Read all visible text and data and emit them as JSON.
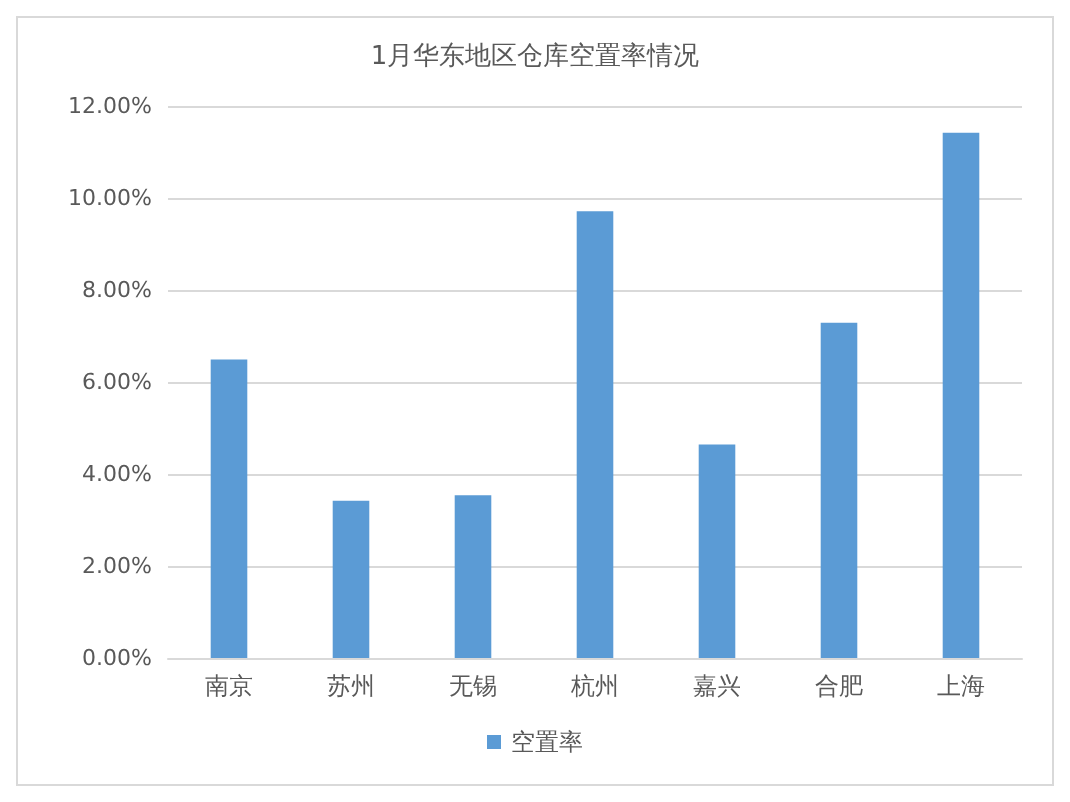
{
  "chart_data": {
    "type": "bar",
    "title": "1月华东地区仓库空置率情况",
    "categories": [
      "南京",
      "苏州",
      "无锡",
      "杭州",
      "嘉兴",
      "合肥",
      "上海"
    ],
    "series": [
      {
        "name": "空置率",
        "color": "#5b9bd5",
        "values": [
          6.49,
          3.42,
          3.54,
          9.71,
          4.64,
          7.29,
          11.42
        ]
      }
    ],
    "ylim": [
      0,
      12
    ],
    "yticks": [
      {
        "value": 0,
        "label": "0.00%"
      },
      {
        "value": 2,
        "label": "2.00%"
      },
      {
        "value": 4,
        "label": "4.00%"
      },
      {
        "value": 6,
        "label": "6.00%"
      },
      {
        "value": 8,
        "label": "8.00%"
      },
      {
        "value": 10,
        "label": "10.00%"
      },
      {
        "value": 12,
        "label": "12.00%"
      }
    ],
    "grid": "y",
    "legend": "bottom"
  }
}
